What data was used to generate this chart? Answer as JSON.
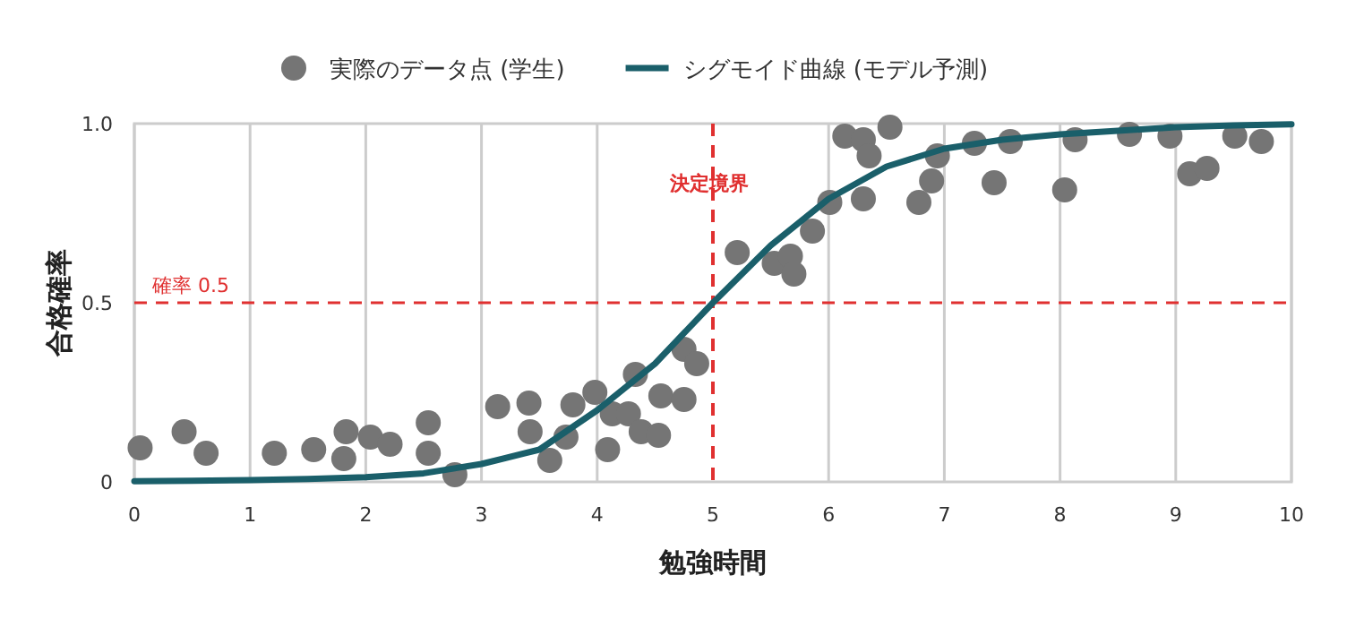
{
  "chart_data": {
    "type": "scatter",
    "xlabel": "勉強時間",
    "ylabel": "合格確率",
    "xlim": [
      0,
      10
    ],
    "ylim": [
      0,
      1
    ],
    "xticks": [
      0,
      1,
      2,
      3,
      4,
      5,
      6,
      7,
      8,
      9,
      10
    ],
    "yticks": [
      0,
      0.5,
      {
        "value": 1,
        "label": "1.0"
      }
    ],
    "grid": "x",
    "legend": "top",
    "marker": "circle",
    "series": [
      {
        "name": "実際のデータ点 (学生)",
        "type": "scatter",
        "color": "#757575",
        "x": [
          0.05,
          0.43,
          0.62,
          1.21,
          1.55,
          1.83,
          1.81,
          2.04,
          2.21,
          2.54,
          2.54,
          2.77,
          3.14,
          3.41,
          3.42,
          3.59,
          3.73,
          3.79,
          3.98,
          4.09,
          4.13,
          4.27,
          4.33,
          4.38,
          4.53,
          4.55,
          4.75,
          4.75,
          4.86,
          5.21,
          5.53,
          5.67,
          5.7,
          5.86,
          6.01,
          6.14,
          6.3,
          6.35,
          6.3,
          6.53,
          6.78,
          6.89,
          6.94,
          7.26,
          7.43,
          7.57,
          8.04,
          8.13,
          8.6,
          8.95,
          9.12,
          9.27,
          9.51,
          9.74
        ],
        "values": [
          0.095,
          0.14,
          0.08,
          0.08,
          0.09,
          0.14,
          0.065,
          0.125,
          0.105,
          0.165,
          0.08,
          0.02,
          0.21,
          0.22,
          0.14,
          0.06,
          0.125,
          0.215,
          0.25,
          0.09,
          0.19,
          0.19,
          0.3,
          0.14,
          0.13,
          0.24,
          0.23,
          0.37,
          0.33,
          0.64,
          0.61,
          0.63,
          0.58,
          0.7,
          0.78,
          0.965,
          0.955,
          0.91,
          0.79,
          0.99,
          0.78,
          0.84,
          0.91,
          0.945,
          0.835,
          0.95,
          0.815,
          0.955,
          0.97,
          0.965,
          0.86,
          0.875,
          0.965,
          0.95
        ]
      },
      {
        "name": "シグモイド曲線 (モデル予測)",
        "type": "line",
        "color": "#1a5f6a",
        "marker": "none",
        "line_style": "solid",
        "x": [
          0,
          0.5,
          1,
          1.5,
          2,
          2.5,
          3,
          3.5,
          4,
          4.5,
          5,
          5.5,
          6,
          6.5,
          7,
          7.5,
          8,
          8.5,
          9,
          9.5,
          10
        ],
        "values": [
          0.002,
          0.003,
          0.005,
          0.008,
          0.013,
          0.024,
          0.05,
          0.09,
          0.2,
          0.33,
          0.5,
          0.66,
          0.79,
          0.88,
          0.93,
          0.955,
          0.97,
          0.98,
          0.99,
          0.995,
          0.998
        ]
      }
    ],
    "ref_lines": [
      {
        "axis": "y",
        "value": 0.5,
        "label": "確率 0.5",
        "color": "#e03030",
        "line_style": "dashed"
      },
      {
        "axis": "x",
        "value": 5,
        "label": "決定境界",
        "color": "#e03030",
        "line_style": "dashed"
      }
    ]
  }
}
